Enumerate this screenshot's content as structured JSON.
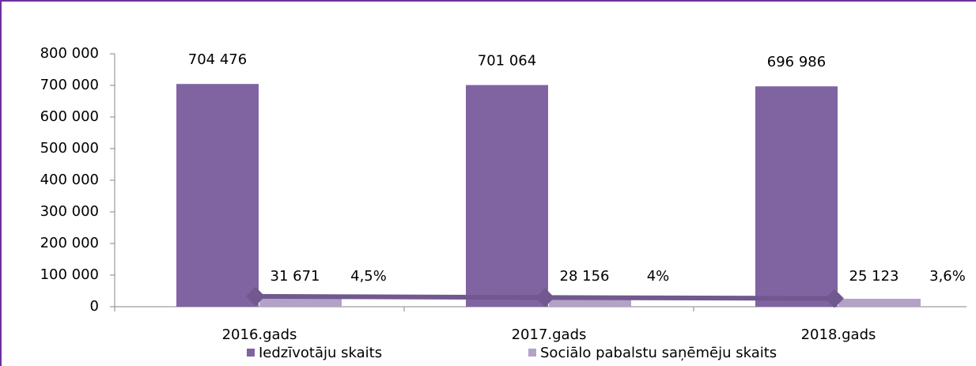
{
  "chart_data": {
    "type": "bar",
    "categories": [
      "2016.gads",
      "2017.gads",
      "2018.gads"
    ],
    "series": [
      {
        "name": "Iedzīvotāju skaits",
        "color": "#8064a2",
        "values": [
          704476,
          701064,
          696986
        ],
        "value_labels": [
          "704 476",
          "701 064",
          "696 986"
        ]
      },
      {
        "name": "Sociālo pabalstu saņēmēju skaits",
        "color": "#b3a2c7",
        "values": [
          31671,
          28156,
          25123
        ],
        "value_labels": [
          "31 671",
          "28 156",
          "25 123"
        ]
      },
      {
        "type": "line",
        "axis": "y2",
        "color": "#71588f",
        "values": [
          4.5,
          4,
          3.6
        ],
        "value_labels": [
          "4,5%",
          "4%",
          "3,6%"
        ]
      }
    ],
    "ylim": [
      0,
      800000
    ],
    "yticks": [
      0,
      {
        "value": 100000,
        "label": "100 000"
      },
      {
        "value": 200000,
        "label": "200 000"
      },
      {
        "value": 300000,
        "label": "300 000"
      },
      {
        "value": 400000,
        "label": "400 000"
      },
      {
        "value": 500000,
        "label": "500 000"
      },
      {
        "value": 600000,
        "label": "600 000"
      },
      {
        "value": 700000,
        "label": "700 000"
      },
      {
        "value": 800000,
        "label": "800 000"
      }
    ],
    "y2lim": [
      0,
      110
    ],
    "legend": "bottom"
  }
}
